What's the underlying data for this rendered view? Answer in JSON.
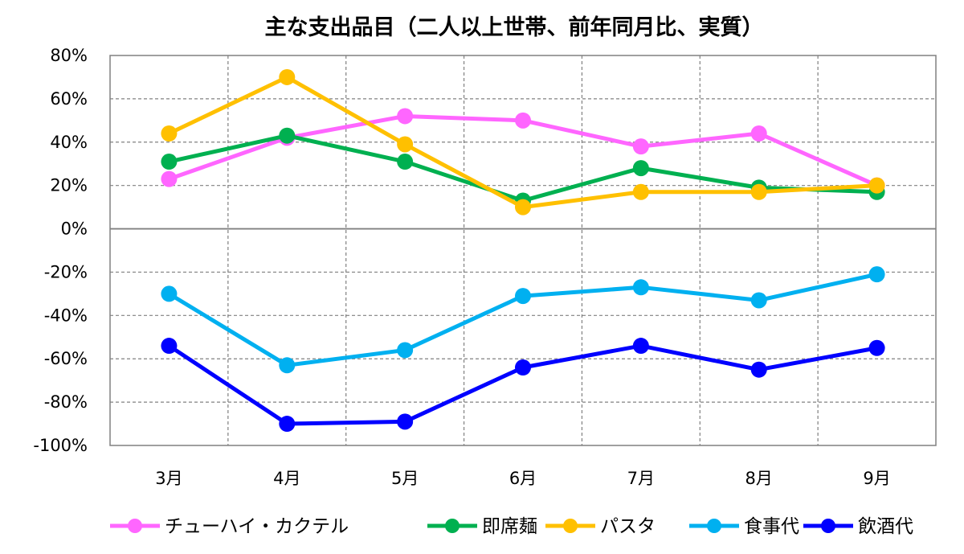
{
  "chart_data": {
    "type": "line",
    "title": "主な支出品目（二人以上世帯、前年同月比、実質）",
    "xlabel": "",
    "ylabel": "",
    "categories": [
      "3月",
      "4月",
      "5月",
      "6月",
      "7月",
      "8月",
      "9月"
    ],
    "ylim": [
      -100,
      80
    ],
    "yticks": [
      80,
      60,
      40,
      20,
      0,
      -20,
      -40,
      -60,
      -80,
      -100
    ],
    "ytick_labels": [
      "80%",
      "60%",
      "40%",
      "20%",
      "0%",
      "-20%",
      "-40%",
      "-60%",
      "-80%",
      "-100%"
    ],
    "grid": true,
    "legend_position": "bottom",
    "series": [
      {
        "name": "チューハイ・カクテル",
        "color": "#FF66FF",
        "values": [
          23,
          42,
          52,
          50,
          38,
          44,
          20
        ]
      },
      {
        "name": "即席麺",
        "color": "#00B050",
        "values": [
          31,
          43,
          31,
          13,
          28,
          19,
          17
        ]
      },
      {
        "name": "パスタ",
        "color": "#FFC000",
        "values": [
          44,
          70,
          39,
          10,
          17,
          17,
          20
        ]
      },
      {
        "name": "食事代",
        "color": "#00B0F0",
        "values": [
          -30,
          -63,
          -56,
          -31,
          -27,
          -33,
          -21
        ]
      },
      {
        "name": "飲酒代",
        "color": "#0000FF",
        "values": [
          -54,
          -90,
          -89,
          -64,
          -54,
          -65,
          -55
        ]
      }
    ]
  }
}
